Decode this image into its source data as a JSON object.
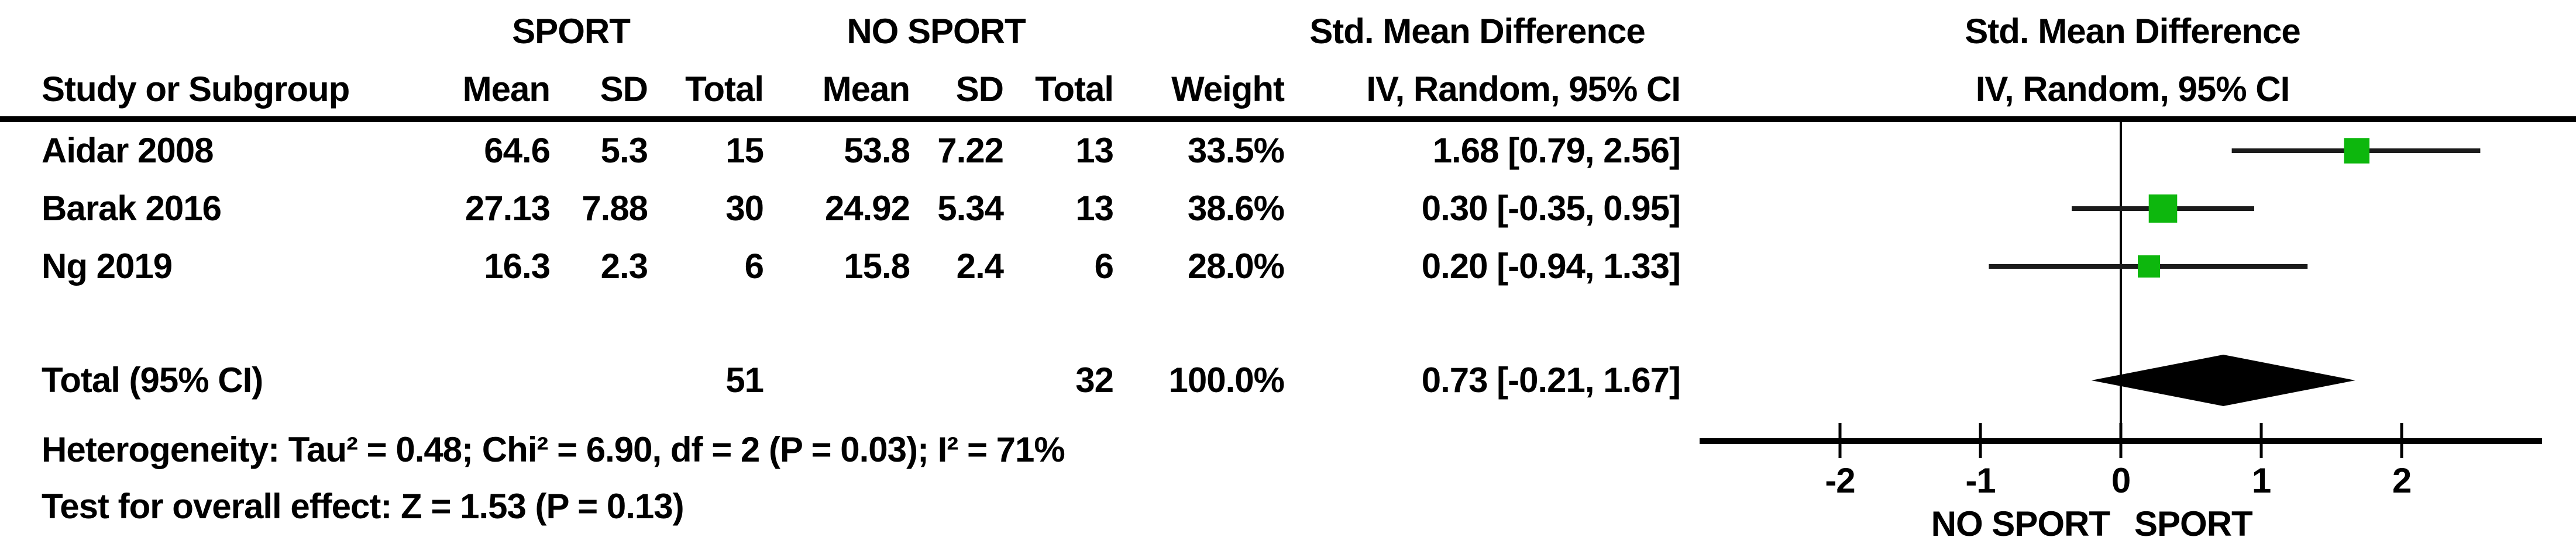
{
  "figure": {
    "background": "#ffffff",
    "text_color": "#000000",
    "marker_color": "#0db70d",
    "line_color": "#1b1b1b",
    "diamond_color": "#000000"
  },
  "header": {
    "sport": "SPORT",
    "no_sport": "NO SPORT",
    "smd_text_col": {
      "line1": "Std. Mean Difference",
      "line2": "IV, Random, 95% CI"
    },
    "smd_plot_col": {
      "line1": "Std. Mean Difference",
      "line2": "IV, Random, 95% CI"
    },
    "columns": [
      "Study or Subgroup",
      "Mean",
      "SD",
      "Total",
      "Mean",
      "SD",
      "Total",
      "Weight"
    ]
  },
  "rows": [
    {
      "study": "Aidar 2008",
      "mean_sport": "64.6",
      "sd_sport": "5.3",
      "total_sport": "15",
      "mean_nosport": "53.8",
      "sd_nosport": "7.22",
      "total_nosport": "13",
      "weight": "33.5%",
      "ci_text": "1.68 [0.79, 2.56]",
      "smd": 1.68,
      "ci_low": 0.79,
      "ci_high": 2.56,
      "weight_value": 33.5
    },
    {
      "study": "Barak 2016",
      "mean_sport": "27.13",
      "sd_sport": "7.88",
      "total_sport": "30",
      "mean_nosport": "24.92",
      "sd_nosport": "5.34",
      "total_nosport": "13",
      "weight": "38.6%",
      "ci_text": "0.30 [-0.35, 0.95]",
      "smd": 0.3,
      "ci_low": -0.35,
      "ci_high": 0.95,
      "weight_value": 38.6
    },
    {
      "study": "Ng 2019",
      "mean_sport": "16.3",
      "sd_sport": "2.3",
      "total_sport": "6",
      "mean_nosport": "15.8",
      "sd_nosport": "2.4",
      "total_nosport": "6",
      "weight": "28.0%",
      "ci_text": "0.20 [-0.94, 1.33]",
      "smd": 0.2,
      "ci_low": -0.94,
      "ci_high": 1.33,
      "weight_value": 28.0
    }
  ],
  "total": {
    "label": "Total (95% CI)",
    "total_sport": "51",
    "total_nosport": "32",
    "weight": "100.0%",
    "ci_text": "0.73 [-0.21, 1.67]",
    "smd": 0.73,
    "ci_low": -0.21,
    "ci_high": 1.67
  },
  "footer": {
    "heterogeneity": "Heterogeneity: Tau² = 0.48; Chi² = 6.90, df = 2 (P = 0.03); I² = 71%",
    "overall_effect": "Test for overall effect: Z = 1.53 (P = 0.13)"
  },
  "axis": {
    "ticks": [
      "-2",
      "-1",
      "0",
      "1",
      "2"
    ],
    "tick_values": [
      -2,
      -1,
      0,
      1,
      2
    ],
    "xlim": [
      -3,
      3
    ],
    "left_label": "NO SPORT",
    "right_label": "SPORT"
  },
  "chart_data": {
    "type": "scatter",
    "subtype": "forest_plot_meta_analysis",
    "effect_measure": "Std. Mean Difference, IV, Random, 95% CI",
    "group_labels": {
      "experimental": "SPORT",
      "control": "NO SPORT"
    },
    "studies": [
      {
        "study": "Aidar 2008",
        "sport_mean": 64.6,
        "sport_sd": 5.3,
        "sport_total": 15,
        "no_sport_mean": 53.8,
        "no_sport_sd": 7.22,
        "no_sport_total": 13,
        "weight_pct": 33.5,
        "smd": 1.68,
        "ci_lower": 0.79,
        "ci_upper": 2.56
      },
      {
        "study": "Barak 2016",
        "sport_mean": 27.13,
        "sport_sd": 7.88,
        "sport_total": 30,
        "no_sport_mean": 24.92,
        "no_sport_sd": 5.34,
        "no_sport_total": 13,
        "weight_pct": 38.6,
        "smd": 0.3,
        "ci_lower": -0.35,
        "ci_upper": 0.95
      },
      {
        "study": "Ng 2019",
        "sport_mean": 16.3,
        "sport_sd": 2.3,
        "sport_total": 6,
        "no_sport_mean": 15.8,
        "no_sport_sd": 2.4,
        "no_sport_total": 6,
        "weight_pct": 28.0,
        "smd": 0.2,
        "ci_lower": -0.94,
        "ci_upper": 1.33
      }
    ],
    "total": {
      "label": "Total (95% CI)",
      "sport_total": 51,
      "no_sport_total": 32,
      "weight_pct": 100.0,
      "smd": 0.73,
      "ci_lower": -0.21,
      "ci_upper": 1.67
    },
    "heterogeneity": {
      "tau2": 0.48,
      "chi2": 6.9,
      "df": 2,
      "p": 0.03,
      "i2_pct": 71
    },
    "overall_effect": {
      "z": 1.53,
      "p": 0.13
    },
    "xlim": [
      -3,
      3
    ],
    "xticks": [
      -2,
      -1,
      0,
      1,
      2
    ],
    "x_axis_left_label": "NO SPORT",
    "x_axis_right_label": "SPORT",
    "grid": false,
    "legend": false
  }
}
